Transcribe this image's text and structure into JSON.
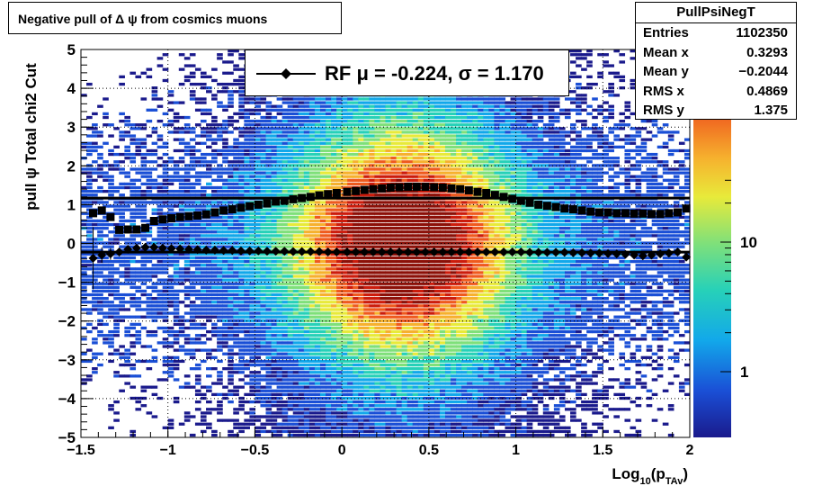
{
  "title": "Negative pull of Δ ψ from cosmics muons",
  "stats": {
    "name": "PullPsiNegT",
    "rows": [
      {
        "label": "Entries",
        "value": "1102350"
      },
      {
        "label": "Mean x",
        "value": "0.3293"
      },
      {
        "label": "Mean y",
        "value": "−0.2044"
      },
      {
        "label": "RMS x",
        "value": "0.4869"
      },
      {
        "label": "RMS y",
        "value": "1.375"
      }
    ]
  },
  "legend": {
    "text": "RF μ = -0.224, σ =   1.170"
  },
  "chart_data": {
    "type": "heatmap",
    "title": "Negative pull of Δ ψ from cosmics muons",
    "xlabel": "Log10(pTAv)",
    "xlabel_parts": {
      "base": "Log",
      "sub1": "10",
      "mid": "(p",
      "sub2": "TAv",
      "end": ")"
    },
    "ylabel": "pull ψ   Total chi2 Cut",
    "xlim": [
      -1.5,
      2
    ],
    "ylim": [
      -5,
      5
    ],
    "x_ticks": [
      "−1.5",
      "−1",
      "−0.5",
      "0",
      "0.5",
      "1",
      "1.5",
      "2"
    ],
    "x_tick_values": [
      -1.5,
      -1,
      -0.5,
      0,
      0.5,
      1,
      1.5,
      2
    ],
    "y_ticks": [
      "−5",
      "−4",
      "−3",
      "−2",
      "−1",
      "0",
      "1",
      "2",
      "3",
      "4",
      "5"
    ],
    "y_tick_values": [
      -5,
      -4,
      -3,
      -2,
      -1,
      0,
      1,
      2,
      3,
      4,
      5
    ],
    "grid": true,
    "z_scale": "log",
    "colorbar_ticks": [
      "1",
      "10"
    ],
    "colorbar_tick_values": [
      1,
      10
    ],
    "colors": {
      "palette": [
        "#1a1a8c",
        "#1a4fd6",
        "#12a8ea",
        "#27d1b8",
        "#7fe07a",
        "#e8ea3a",
        "#f6b12e",
        "#ef5a1e",
        "#cc1c0c",
        "#8c1008"
      ],
      "marker": "#000000"
    },
    "series": [
      {
        "name": "RF",
        "marker": "diamond",
        "x": [
          -1.43,
          -1.38,
          -1.33,
          -1.28,
          -1.23,
          -1.18,
          -1.13,
          -1.08,
          -1.03,
          -0.98,
          -0.93,
          -0.88,
          -0.83,
          -0.78,
          -0.73,
          -0.68,
          -0.63,
          -0.58,
          -0.53,
          -0.48,
          -0.43,
          -0.38,
          -0.33,
          -0.28,
          -0.23,
          -0.18,
          -0.13,
          -0.08,
          -0.03,
          0.03,
          0.08,
          0.13,
          0.18,
          0.23,
          0.28,
          0.33,
          0.38,
          0.43,
          0.48,
          0.53,
          0.58,
          0.63,
          0.68,
          0.73,
          0.78,
          0.83,
          0.88,
          0.93,
          0.98,
          1.03,
          1.08,
          1.13,
          1.18,
          1.23,
          1.28,
          1.33,
          1.38,
          1.43,
          1.48,
          1.53,
          1.58,
          1.63,
          1.68,
          1.73,
          1.78,
          1.83,
          1.88,
          1.93,
          1.98
        ],
        "y": [
          -0.38,
          -0.3,
          -0.27,
          -0.22,
          -0.15,
          -0.12,
          -0.1,
          -0.1,
          -0.12,
          -0.13,
          -0.14,
          -0.15,
          -0.16,
          -0.17,
          -0.17,
          -0.18,
          -0.18,
          -0.19,
          -0.19,
          -0.19,
          -0.2,
          -0.2,
          -0.2,
          -0.21,
          -0.21,
          -0.21,
          -0.21,
          -0.22,
          -0.22,
          -0.22,
          -0.22,
          -0.22,
          -0.22,
          -0.22,
          -0.22,
          -0.22,
          -0.22,
          -0.22,
          -0.22,
          -0.22,
          -0.22,
          -0.22,
          -0.22,
          -0.22,
          -0.22,
          -0.22,
          -0.22,
          -0.22,
          -0.22,
          -0.22,
          -0.23,
          -0.23,
          -0.23,
          -0.23,
          -0.23,
          -0.24,
          -0.24,
          -0.25,
          -0.25,
          -0.26,
          -0.27,
          -0.28,
          -0.3,
          -0.32,
          -0.3,
          -0.27,
          -0.25,
          -0.22,
          -0.35
        ],
        "errors": [
          0.8,
          0.2,
          0.15,
          0.1,
          0.08,
          0.06,
          0.05,
          0.05,
          0.04,
          0.04,
          0.03,
          0.03,
          0.03,
          0.02,
          0.02,
          0.02,
          0.02,
          0.02,
          0.02,
          0.02,
          0.02,
          0.02,
          0.02,
          0.02,
          0.02,
          0.02,
          0.02,
          0.02,
          0.02,
          0.02,
          0.02,
          0.02,
          0.02,
          0.02,
          0.02,
          0.02,
          0.02,
          0.02,
          0.02,
          0.02,
          0.02,
          0.02,
          0.02,
          0.02,
          0.02,
          0.02,
          0.02,
          0.02,
          0.02,
          0.02,
          0.02,
          0.02,
          0.02,
          0.02,
          0.02,
          0.02,
          0.02,
          0.03,
          0.03,
          0.03,
          0.04,
          0.04,
          0.05,
          0.06,
          0.06,
          0.07,
          0.08,
          0.1,
          0.1
        ]
      },
      {
        "marker": "square",
        "x": [
          -1.43,
          -1.38,
          -1.33,
          -1.28,
          -1.23,
          -1.18,
          -1.13,
          -1.08,
          -1.03,
          -0.98,
          -0.93,
          -0.88,
          -0.83,
          -0.78,
          -0.73,
          -0.68,
          -0.63,
          -0.58,
          -0.53,
          -0.48,
          -0.43,
          -0.38,
          -0.33,
          -0.28,
          -0.23,
          -0.18,
          -0.13,
          -0.08,
          -0.03,
          0.03,
          0.08,
          0.13,
          0.18,
          0.23,
          0.28,
          0.33,
          0.38,
          0.43,
          0.48,
          0.53,
          0.58,
          0.63,
          0.68,
          0.73,
          0.78,
          0.83,
          0.88,
          0.93,
          0.98,
          1.03,
          1.08,
          1.13,
          1.18,
          1.23,
          1.28,
          1.33,
          1.38,
          1.43,
          1.48,
          1.53,
          1.58,
          1.63,
          1.68,
          1.73,
          1.78,
          1.83,
          1.88,
          1.93,
          1.98
        ],
        "y": [
          0.78,
          0.85,
          0.68,
          0.35,
          0.36,
          0.36,
          0.4,
          0.58,
          0.62,
          0.65,
          0.68,
          0.7,
          0.72,
          0.75,
          0.8,
          0.85,
          0.88,
          0.92,
          0.96,
          1.0,
          1.03,
          1.08,
          1.1,
          1.14,
          1.17,
          1.2,
          1.24,
          1.27,
          1.3,
          1.33,
          1.35,
          1.38,
          1.4,
          1.42,
          1.44,
          1.45,
          1.46,
          1.46,
          1.46,
          1.45,
          1.44,
          1.42,
          1.4,
          1.37,
          1.33,
          1.3,
          1.25,
          1.2,
          1.15,
          1.1,
          1.05,
          1.0,
          0.97,
          0.94,
          0.9,
          0.88,
          0.85,
          0.82,
          0.8,
          0.8,
          0.78,
          0.78,
          0.77,
          0.77,
          0.76,
          0.76,
          0.78,
          0.8,
          0.9
        ]
      }
    ],
    "lines": [
      {
        "y": 1.17
      },
      {
        "y": -0.224
      }
    ]
  }
}
